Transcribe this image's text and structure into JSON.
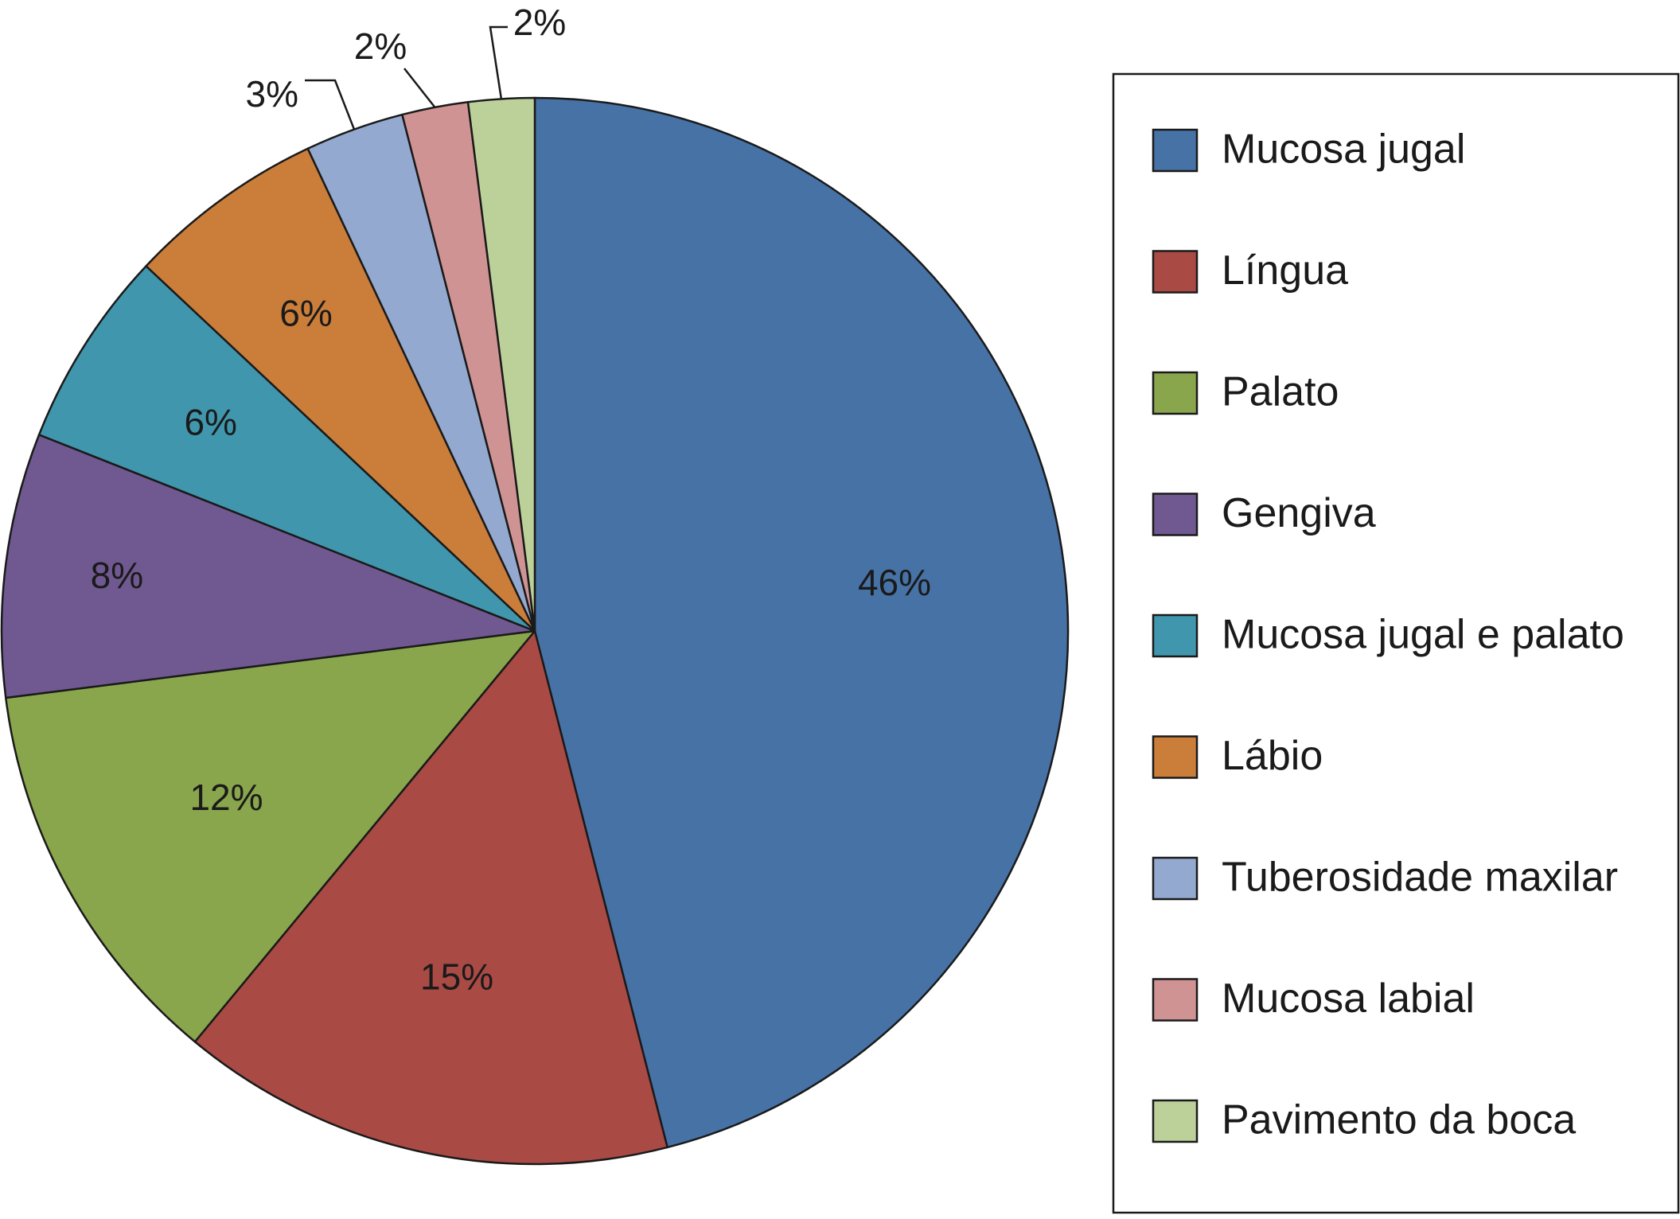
{
  "chart_data": {
    "type": "pie",
    "legend_position": "right",
    "slices": [
      {
        "label": "Mucosa jugal",
        "value": 46,
        "value_label": "46%",
        "color": "#4672A6"
      },
      {
        "label": "Língua",
        "value": 15,
        "value_label": "15%",
        "color": "#AA4A45"
      },
      {
        "label": "Palato",
        "value": 12,
        "value_label": "12%",
        "color": "#89A64C"
      },
      {
        "label": "Gengiva",
        "value": 8,
        "value_label": "8%",
        "color": "#705990"
      },
      {
        "label": "Mucosa jugal e palato",
        "value": 6,
        "value_label": "6%",
        "color": "#4096AC"
      },
      {
        "label": "Lábio",
        "value": 6,
        "value_label": "6%",
        "color": "#CB7E3A"
      },
      {
        "label": "Tuberosidade maxilar",
        "value": 3,
        "value_label": "3%",
        "color": "#94A9D0"
      },
      {
        "label": "Mucosa labial",
        "value": 2,
        "value_label": "2%",
        "color": "#D09393"
      },
      {
        "label": "Pavimento da boca",
        "value": 2,
        "value_label": "2%",
        "color": "#BCD19A"
      }
    ]
  }
}
